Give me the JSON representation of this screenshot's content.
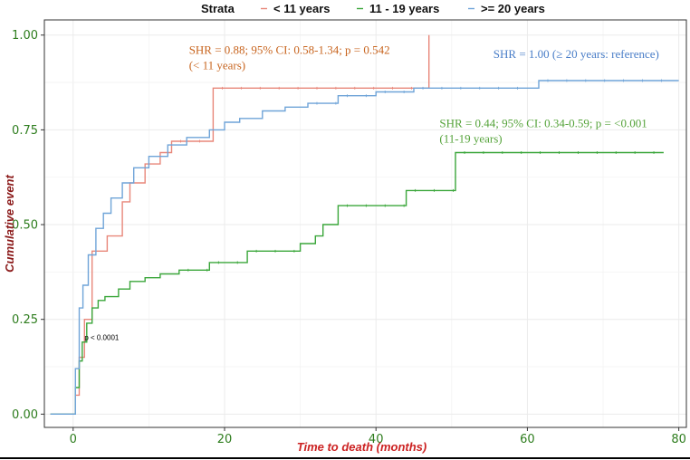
{
  "chart_data": {
    "type": "line",
    "step": true,
    "xlabel": "Time to death (months)",
    "ylabel": "Cumulative event",
    "xlim": [
      -3.8,
      81
    ],
    "ylim": [
      -0.035,
      1.04
    ],
    "xticks": [
      0,
      20,
      40,
      60,
      80
    ],
    "yticks": [
      0.0,
      0.25,
      0.5,
      0.75,
      1.0
    ],
    "ytick_labels": [
      "0.00",
      "0.25",
      "0.50",
      "0.75",
      "1.00"
    ],
    "grid": true,
    "legend": {
      "title": "Strata",
      "placement": "top",
      "entries": [
        "< 11 years",
        "11 - 19 years",
        ">= 20 years"
      ]
    },
    "colors": {
      "red": "#e8877a",
      "green": "#3aa63a",
      "blue": "#6fa4d8",
      "tick_text": "#2e7d1e",
      "axis_title": "#cc2222",
      "ylabel": "#8b1a1a"
    },
    "series": [
      {
        "name": "< 11 years",
        "color": "#e8877a",
        "x": [
          -3,
          0,
          0.3,
          0.8,
          1.5,
          2.5,
          4.5,
          6.5,
          7.5,
          9.5,
          11.5,
          13,
          18.5,
          47,
          47
        ],
        "y": [
          0,
          0,
          0.05,
          0.15,
          0.25,
          0.43,
          0.47,
          0.56,
          0.61,
          0.66,
          0.69,
          0.72,
          0.86,
          0.86,
          1.0
        ]
      },
      {
        "name": "11 - 19 years",
        "color": "#3aa63a",
        "x": [
          -3,
          0,
          0.3,
          0.8,
          1.2,
          1.8,
          2.5,
          3.3,
          4.2,
          6,
          7.5,
          9.5,
          11.5,
          14,
          18,
          23,
          30,
          32,
          33,
          35,
          44,
          50.5,
          78
        ],
        "y": [
          0,
          0,
          0.07,
          0.14,
          0.19,
          0.24,
          0.28,
          0.3,
          0.31,
          0.33,
          0.35,
          0.36,
          0.37,
          0.38,
          0.4,
          0.43,
          0.45,
          0.47,
          0.5,
          0.55,
          0.59,
          0.69,
          0.69
        ]
      },
      {
        "name": ">= 20 years",
        "color": "#6fa4d8",
        "x": [
          -3,
          0,
          0.3,
          0.8,
          1.3,
          2,
          3,
          4,
          5,
          6.5,
          8,
          10,
          12.5,
          15,
          18,
          20,
          22,
          25,
          28,
          31,
          35,
          40,
          45,
          50,
          55,
          61,
          61.5,
          80
        ],
        "y": [
          0,
          0,
          0.12,
          0.28,
          0.34,
          0.42,
          0.49,
          0.53,
          0.57,
          0.61,
          0.65,
          0.68,
          0.71,
          0.73,
          0.75,
          0.77,
          0.78,
          0.8,
          0.81,
          0.82,
          0.84,
          0.85,
          0.86,
          0.86,
          0.86,
          0.86,
          0.88,
          0.88
        ]
      }
    ],
    "annotations": [
      {
        "lines": [
          "SHR = 0.88; 95% CI: 0.58-1.34; p = 0.542",
          "(< 11 years)"
        ],
        "color": "#c8651f",
        "x": 15.3,
        "y": 0.95
      },
      {
        "lines": [
          "SHR = 1.00 (≥ 20 years: reference)"
        ],
        "color": "#4a7ec8",
        "x": 55.5,
        "y": 0.94
      },
      {
        "lines": [
          "SHR = 0.44; 95% CI: 0.34-0.59; p = <0.001",
          "(11-19 years)"
        ],
        "color": "#55a33a",
        "x": 48.4,
        "y": 0.757
      },
      {
        "lines": [
          "p < 0.0001"
        ],
        "color": "#000000",
        "x": 1.5,
        "y": 0.195
      }
    ]
  }
}
